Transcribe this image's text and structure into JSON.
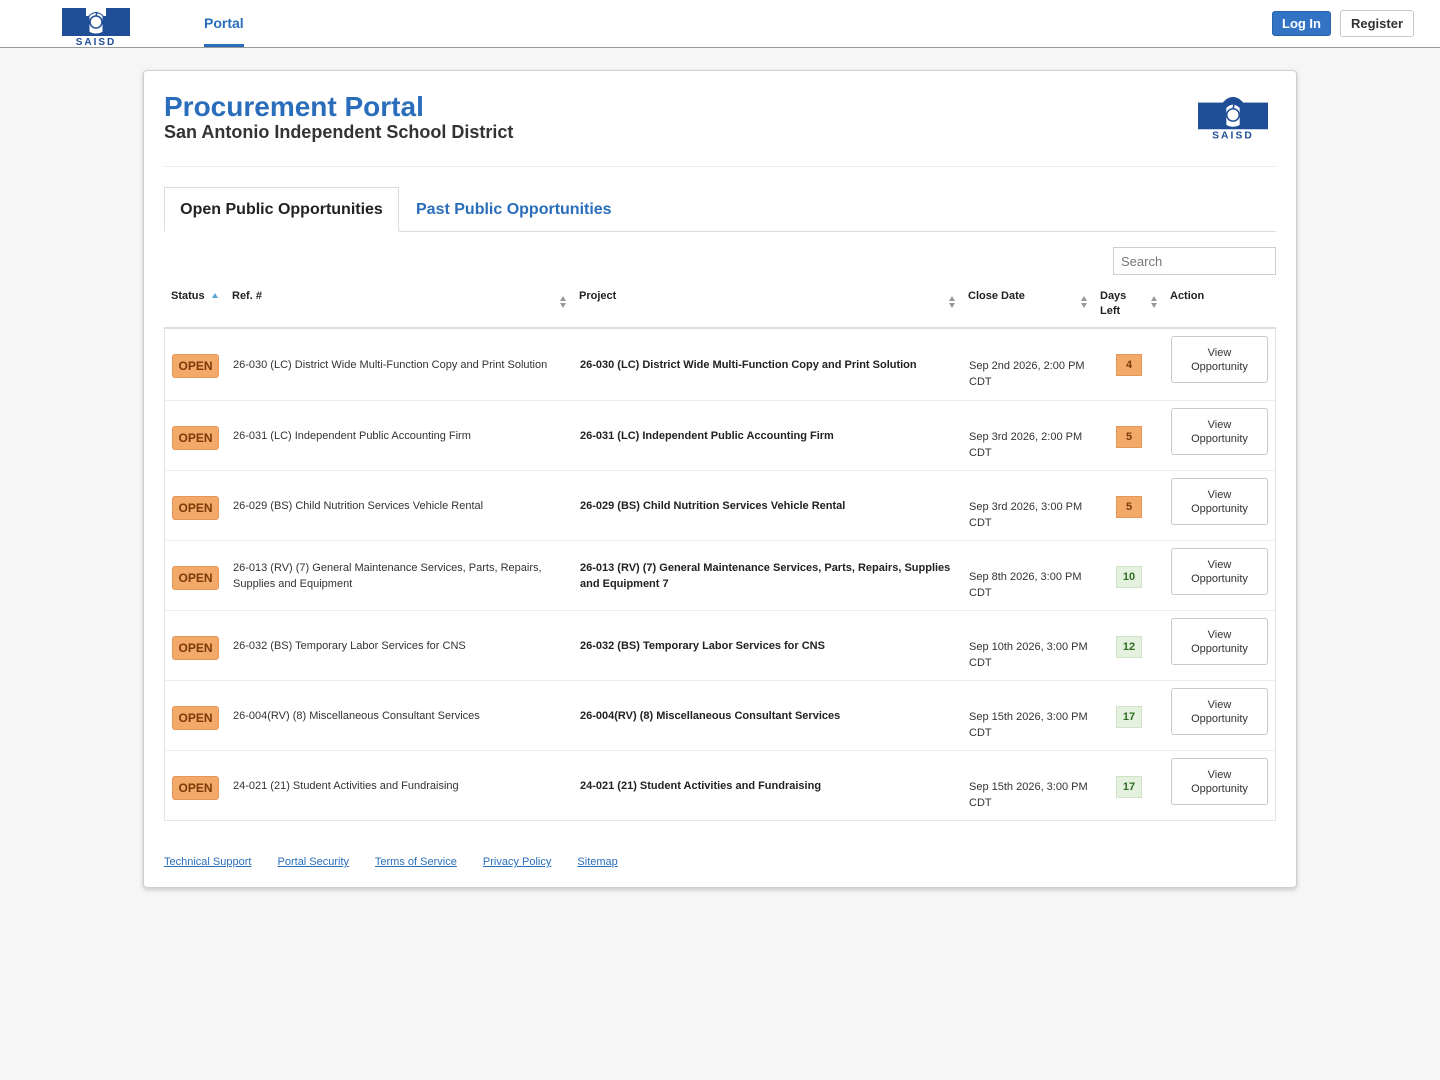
{
  "header": {
    "logo_text": "SAISD",
    "nav_portal": "Portal",
    "login_label": "Log In",
    "register_label": "Register"
  },
  "page": {
    "title": "Procurement Portal",
    "subtitle": "San Antonio Independent School District"
  },
  "tabs": {
    "open_label": "Open Public Opportunities",
    "past_label": "Past Public Opportunities"
  },
  "search": {
    "placeholder": "Search"
  },
  "table": {
    "headers": {
      "status": "Status",
      "ref": "Ref. #",
      "project": "Project",
      "close_date": "Close Date",
      "days_left_1": "Days",
      "days_left_2": "Left",
      "action": "Action"
    },
    "rows": [
      {
        "status": "OPEN",
        "ref": "26-030 (LC) District Wide Multi-Function Copy and Print Solution",
        "project": "26-030 (LC) District Wide Multi-Function Copy and Print Solution",
        "close": "Sep 2nd 2026, 2:00 PM CDT",
        "days": "4",
        "level": "warn",
        "action": "View Opportunity"
      },
      {
        "status": "OPEN",
        "ref": "26-031 (LC) Independent Public Accounting Firm",
        "project": "26-031 (LC) Independent Public Accounting Firm",
        "close": "Sep 3rd 2026, 2:00 PM CDT",
        "days": "5",
        "level": "warn",
        "action": "View Opportunity"
      },
      {
        "status": "OPEN",
        "ref": "26-029 (BS) Child Nutrition Services Vehicle Rental",
        "project": "26-029 (BS) Child Nutrition Services Vehicle Rental",
        "close": "Sep 3rd 2026, 3:00 PM CDT",
        "days": "5",
        "level": "warn",
        "action": "View Opportunity"
      },
      {
        "status": "OPEN",
        "ref": "26-013 (RV) (7) General Maintenance Services, Parts, Repairs, Supplies and Equipment",
        "project": "26-013 (RV) (7) General Maintenance Services, Parts, Repairs, Supplies and Equipment 7",
        "close": "Sep 8th 2026, 3:00 PM CDT",
        "days": "10",
        "level": "ok",
        "action": "View Opportunity"
      },
      {
        "status": "OPEN",
        "ref": "26-032 (BS) Temporary Labor Services for CNS",
        "project": "26-032 (BS) Temporary Labor Services for CNS",
        "close": "Sep 10th 2026, 3:00 PM CDT",
        "days": "12",
        "level": "ok",
        "action": "View Opportunity"
      },
      {
        "status": "OPEN",
        "ref": "26-004(RV) (8) Miscellaneous Consultant Services",
        "project": "26-004(RV) (8) Miscellaneous Consultant Services",
        "close": "Sep 15th 2026, 3:00 PM CDT",
        "days": "17",
        "level": "ok",
        "action": "View Opportunity"
      },
      {
        "status": "OPEN",
        "ref": "24-021 (21) Student Activities and Fundraising",
        "project": "24-021 (21) Student Activities and Fundraising",
        "close": "Sep 15th 2026, 3:00 PM CDT",
        "days": "17",
        "level": "ok",
        "action": "View Opportunity"
      }
    ]
  },
  "footer": {
    "links": [
      "Technical Support",
      "Portal Security",
      "Terms of Service",
      "Privacy Policy",
      "Sitemap"
    ]
  },
  "colors": {
    "brand_blue": "#2a6ebb",
    "logo_navy": "#1f4e96",
    "open_badge": "#f3a96a",
    "days_ok_bg": "#e4f1df"
  }
}
